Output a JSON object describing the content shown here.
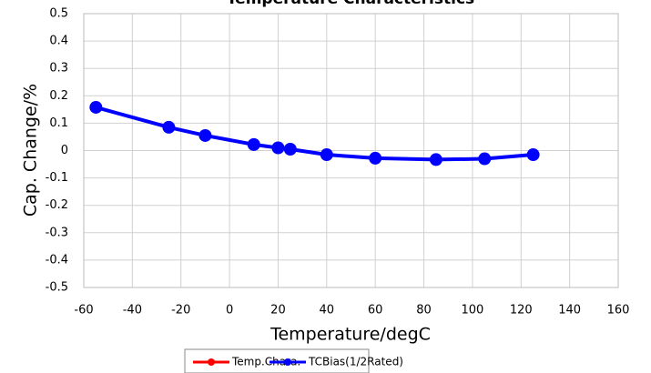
{
  "chart_data": {
    "type": "line",
    "title": "Temperature Characteristics",
    "x_label": "Temperature/degC",
    "y_label": "Cap. Change/%",
    "x": [
      -55,
      -25,
      -10,
      10,
      20,
      25,
      40,
      60,
      85,
      105,
      125
    ],
    "series": [
      {
        "name": "Temp.Chara.",
        "color": "#ff0000",
        "values": [
          null,
          null,
          null,
          null,
          null,
          null,
          null,
          null,
          null,
          null,
          null
        ]
      },
      {
        "name": "TCBias(1/2Rated)",
        "color": "#0000ff",
        "values": [
          0.158,
          0.085,
          0.055,
          0.022,
          0.01,
          0.005,
          -0.015,
          -0.028,
          -0.033,
          -0.03,
          -0.015
        ]
      }
    ],
    "xlim": [
      -60,
      160
    ],
    "xticks": [
      -60,
      -40,
      -20,
      0,
      20,
      40,
      60,
      80,
      100,
      120,
      140,
      160
    ],
    "ylim": [
      -0.5,
      0.5
    ],
    "yticks": [
      0.5,
      0.4,
      0.3,
      0.2,
      0.1,
      0,
      -0.1,
      -0.2,
      -0.3,
      -0.4,
      -0.5
    ],
    "grid": true,
    "legend": "bottom"
  }
}
